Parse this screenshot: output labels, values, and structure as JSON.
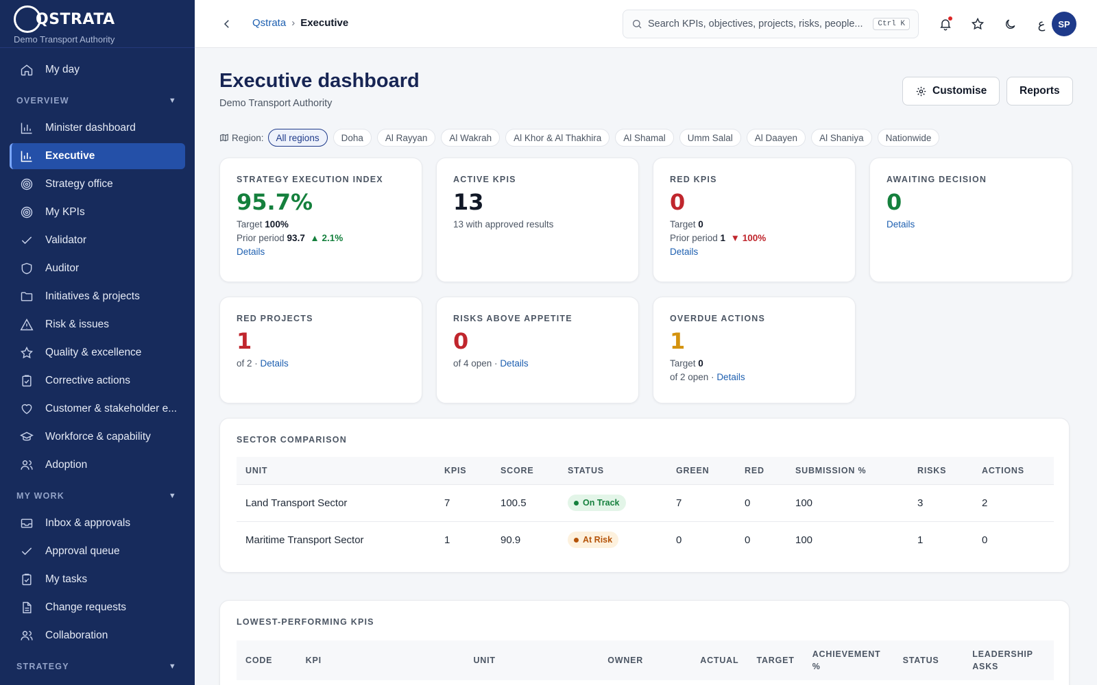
{
  "brand": {
    "name": "QSTRATA",
    "org": "Demo Transport Authority"
  },
  "sidebar": {
    "top_items": [
      {
        "label": "My day",
        "icon": "home-icon"
      }
    ],
    "sections": [
      {
        "title": "OVERVIEW",
        "items": [
          {
            "label": "Minister dashboard",
            "icon": "bar-chart-icon"
          },
          {
            "label": "Executive",
            "icon": "bar-chart-icon",
            "active": true
          },
          {
            "label": "Strategy office",
            "icon": "target-icon"
          },
          {
            "label": "My KPIs",
            "icon": "target-icon"
          },
          {
            "label": "Validator",
            "icon": "check-icon"
          },
          {
            "label": "Auditor",
            "icon": "shield-icon"
          },
          {
            "label": "Initiatives & projects",
            "icon": "folder-icon"
          },
          {
            "label": "Risk & issues",
            "icon": "warning-icon"
          },
          {
            "label": "Quality & excellence",
            "icon": "star-icon"
          },
          {
            "label": "Corrective actions",
            "icon": "clipboard-check-icon"
          },
          {
            "label": "Customer & stakeholder e...",
            "icon": "heart-icon"
          },
          {
            "label": "Workforce & capability",
            "icon": "graduation-cap-icon"
          },
          {
            "label": "Adoption",
            "icon": "users-icon"
          }
        ]
      },
      {
        "title": "MY WORK",
        "items": [
          {
            "label": "Inbox & approvals",
            "icon": "inbox-icon"
          },
          {
            "label": "Approval queue",
            "icon": "check-icon"
          },
          {
            "label": "My tasks",
            "icon": "clipboard-check-icon"
          },
          {
            "label": "Change requests",
            "icon": "document-icon"
          },
          {
            "label": "Collaboration",
            "icon": "users-icon"
          }
        ]
      },
      {
        "title": "STRATEGY",
        "items": []
      }
    ]
  },
  "topbar": {
    "breadcrumb": {
      "root": "Qstrata",
      "separator": "›",
      "current": "Executive"
    },
    "search": {
      "placeholder": "Search KPIs, objectives, projects, risks, people...",
      "shortcut": "Ctrl K"
    },
    "lang_toggle": "ع",
    "avatar_initials": "SP"
  },
  "page": {
    "title": "Executive dashboard",
    "subtitle": "Demo Transport Authority",
    "customise_label": "Customise",
    "reports_label": "Reports"
  },
  "regions": {
    "label": "Region:",
    "chips": [
      "All regions",
      "Doha",
      "Al Rayyan",
      "Al Wakrah",
      "Al Khor & Al Thakhira",
      "Al Shamal",
      "Umm Salal",
      "Al Daayen",
      "Al Shaniya",
      "Nationwide"
    ],
    "selected": "All regions"
  },
  "kpi_cards": {
    "sei": {
      "label": "STRATEGY EXECUTION INDEX",
      "value": "95.7%",
      "target_text": "Target",
      "target_value": "100%",
      "prior_text": "Prior period",
      "prior_value": "93.7",
      "delta": "2.1%",
      "details": "Details"
    },
    "active": {
      "label": "ACTIVE KPIS",
      "value": "13",
      "note": "13 with approved results"
    },
    "red_kpis": {
      "label": "RED KPIS",
      "value": "0",
      "target_text": "Target",
      "target_value": "0",
      "prior_text": "Prior period",
      "prior_value": "1",
      "delta": "100%",
      "details": "Details"
    },
    "awaiting": {
      "label": "AWAITING DECISION",
      "value": "0",
      "details": "Details"
    },
    "red_projects": {
      "label": "RED PROJECTS",
      "value": "1",
      "of_text": "of 2 ·",
      "details": "Details"
    },
    "risks": {
      "label": "RISKS ABOVE APPETITE",
      "value": "0",
      "of_text": "of 4 open ·",
      "details": "Details"
    },
    "overdue": {
      "label": "OVERDUE ACTIONS",
      "value": "1",
      "target_text": "Target",
      "target_value": "0",
      "of_text": "of 2 open ·",
      "details": "Details"
    }
  },
  "colors": {
    "green": "#15803d",
    "red": "#c0262d",
    "amber": "#d4930f",
    "navy": "#172554",
    "sidebar": "#172b5c",
    "accent": "#2450a8"
  },
  "sector_comparison": {
    "title": "SECTOR COMPARISON",
    "columns": [
      "UNIT",
      "KPIS",
      "SCORE",
      "STATUS",
      "GREEN",
      "RED",
      "SUBMISSION %",
      "RISKS",
      "ACTIONS"
    ],
    "rows": [
      {
        "unit": "Land Transport Sector",
        "kpis": "7",
        "score": "100.5",
        "status": "On Track",
        "status_kind": "green",
        "green": "7",
        "red": "0",
        "submission": "100",
        "risks": "3",
        "actions": "2"
      },
      {
        "unit": "Maritime Transport Sector",
        "kpis": "1",
        "score": "90.9",
        "status": "At Risk",
        "status_kind": "amber",
        "green": "0",
        "red": "0",
        "submission": "100",
        "risks": "1",
        "actions": "0"
      }
    ]
  },
  "lowest_kpis": {
    "title": "LOWEST-PERFORMING KPIS",
    "columns": [
      "CODE",
      "KPI",
      "UNIT",
      "OWNER",
      "ACTUAL",
      "TARGET",
      "ACHIEVEMENT %",
      "STATUS",
      "LEADERSHIP ASKS"
    ]
  }
}
